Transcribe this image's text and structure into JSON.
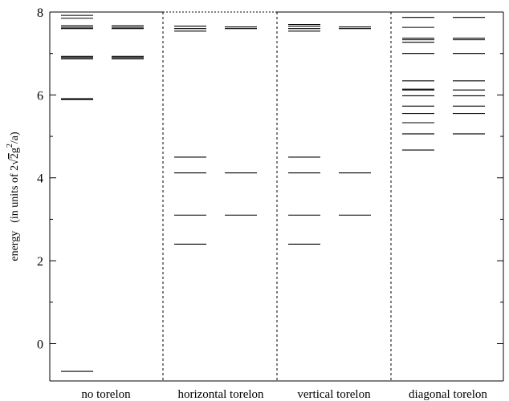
{
  "chart_data": {
    "type": "line",
    "ylabel": {
      "prefix": "energy",
      "units_open": "(in units of 2",
      "sqrt_sign": "√",
      "sqrt_arg": "2",
      "g": "g",
      "exponent": "2",
      "units_close": "/a)"
    },
    "ylim": [
      -0.9,
      8
    ],
    "yticks": [
      0,
      2,
      4,
      6,
      8
    ],
    "grid": false,
    "categories": [
      "no torelon",
      "horizontal torelon",
      "vertical torelon",
      "diagonal torelon"
    ],
    "series": [
      {
        "columns": [
          [
            -0.67,
            5.89,
            5.91,
            6.87,
            6.9,
            6.93,
            7.6,
            7.63,
            7.67,
            7.85,
            7.92
          ],
          [
            6.87,
            6.9,
            6.93,
            7.6,
            7.63,
            7.67
          ]
        ]
      },
      {
        "columns": [
          [
            2.4,
            3.1,
            4.12,
            4.5,
            7.54,
            7.6,
            7.66
          ],
          [
            3.1,
            4.12,
            7.6,
            7.64
          ]
        ]
      },
      {
        "columns": [
          [
            2.4,
            3.1,
            4.12,
            4.5,
            7.54,
            7.6,
            7.66,
            7.7
          ],
          [
            3.1,
            4.12,
            7.6,
            7.64
          ]
        ]
      },
      {
        "columns": [
          [
            4.67,
            5.06,
            5.33,
            5.55,
            5.73,
            5.98,
            6.12,
            6.14,
            6.34,
            7.0,
            7.27,
            7.33,
            7.37,
            7.63,
            7.87
          ],
          [
            5.06,
            5.55,
            5.73,
            5.98,
            6.12,
            6.34,
            7.0,
            7.33,
            7.37,
            7.87
          ]
        ]
      }
    ]
  }
}
